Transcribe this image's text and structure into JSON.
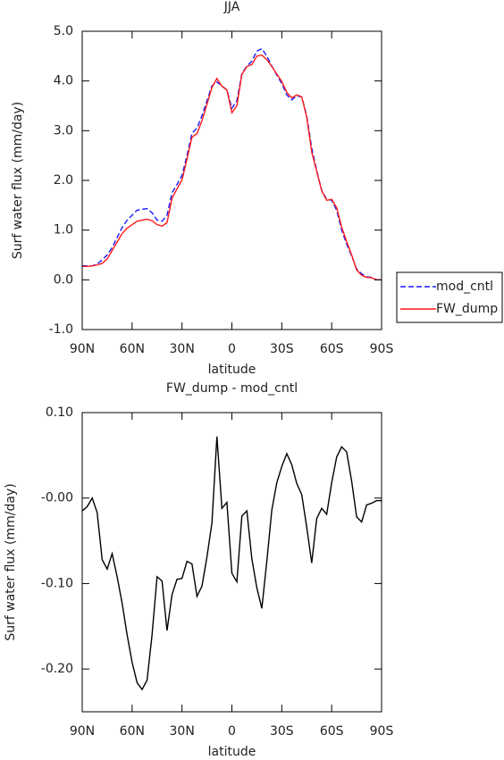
{
  "chart_data": [
    {
      "type": "line",
      "title": "JJA",
      "xlabel": "latitude",
      "ylabel": "Surf water flux (mm/day)",
      "x": [
        90,
        87,
        84,
        81,
        78,
        75,
        72,
        69,
        66,
        63,
        60,
        57,
        54,
        51,
        48,
        45,
        42,
        39,
        36,
        33,
        30,
        27,
        24,
        21,
        18,
        15,
        12,
        9,
        6,
        3,
        0,
        -3,
        -6,
        -9,
        -12,
        -15,
        -18,
        -21,
        -24,
        -27,
        -30,
        -33,
        -36,
        -39,
        -42,
        -45,
        -48,
        -51,
        -54,
        -57,
        -60,
        -63,
        -66,
        -69,
        -72,
        -75,
        -78,
        -81,
        -84,
        -87,
        -90
      ],
      "series": [
        {
          "name": "mod_cntl",
          "color": "#1a1aff",
          "linestyle": "dashed",
          "values": [
            0.28,
            0.28,
            0.28,
            0.32,
            0.4,
            0.5,
            0.65,
            0.85,
            1.05,
            1.2,
            1.3,
            1.4,
            1.42,
            1.43,
            1.35,
            1.2,
            1.18,
            1.3,
            1.75,
            1.92,
            2.1,
            2.5,
            2.95,
            3.05,
            3.3,
            3.6,
            3.9,
            3.98,
            3.9,
            3.82,
            3.45,
            3.6,
            4.15,
            4.3,
            4.4,
            4.6,
            4.65,
            4.5,
            4.3,
            4.12,
            3.95,
            3.72,
            3.62,
            3.7,
            3.68,
            3.3,
            2.65,
            2.2,
            1.8,
            1.62,
            1.6,
            1.4,
            1.0,
            0.72,
            0.48,
            0.22,
            0.12,
            0.06,
            0.05,
            0.0,
            0.0
          ]
        },
        {
          "name": "FW_dump",
          "color": "#ff1a1a",
          "linestyle": "solid",
          "values": [
            0.27,
            0.27,
            0.28,
            0.3,
            0.33,
            0.42,
            0.59,
            0.76,
            0.93,
            1.04,
            1.11,
            1.18,
            1.2,
            1.22,
            1.19,
            1.11,
            1.08,
            1.15,
            1.64,
            1.83,
            2.01,
            2.43,
            2.87,
            2.94,
            3.2,
            3.53,
            3.87,
            4.05,
            3.89,
            3.82,
            3.36,
            3.5,
            4.13,
            4.29,
            4.33,
            4.5,
            4.52,
            4.43,
            4.29,
            4.14,
            3.99,
            3.77,
            3.66,
            3.72,
            3.68,
            3.27,
            2.57,
            2.18,
            1.79,
            1.6,
            1.62,
            1.45,
            1.06,
            0.77,
            0.5,
            0.2,
            0.09,
            0.05,
            0.04,
            0.0,
            0.0
          ]
        }
      ],
      "xlim": [
        90,
        -90
      ],
      "xticks": [
        {
          "value": 90,
          "label": "90N"
        },
        {
          "value": 60,
          "label": "60N"
        },
        {
          "value": 30,
          "label": "30N"
        },
        0,
        {
          "value": -30,
          "label": "30S"
        },
        {
          "value": -60,
          "label": "60S"
        },
        {
          "value": -90,
          "label": "90S"
        }
      ],
      "ylim": [
        -1,
        5
      ],
      "yticks": [
        {
          "value": -1,
          "label": "-1.0"
        },
        {
          "value": 0,
          "label": "0.0"
        },
        {
          "value": 1,
          "label": "1.0"
        },
        {
          "value": 2,
          "label": "2.0"
        },
        {
          "value": 3,
          "label": "3.0"
        },
        {
          "value": 4,
          "label": "4.0"
        },
        {
          "value": 5,
          "label": "5.0"
        }
      ],
      "legend": "right"
    },
    {
      "type": "line",
      "title": "FW_dump - mod_cntl",
      "xlabel": "latitude",
      "ylabel": "Surf water flux (mm/day)",
      "x": [
        90,
        87,
        84,
        81,
        78,
        75,
        72,
        69,
        66,
        63,
        60,
        57,
        54,
        51,
        48,
        45,
        42,
        39,
        36,
        33,
        30,
        27,
        24,
        21,
        18,
        15,
        12,
        9,
        6,
        3,
        0,
        -3,
        -6,
        -9,
        -12,
        -15,
        -18,
        -21,
        -24,
        -27,
        -30,
        -33,
        -36,
        -39,
        -42,
        -45,
        -48,
        -51,
        -54,
        -57,
        -60,
        -63,
        -66,
        -69,
        -72,
        -75,
        -78,
        -81,
        -84,
        -87,
        -90
      ],
      "series": [
        {
          "color": "#000000",
          "linestyle": "solid",
          "values": [
            -0.015,
            -0.01,
            0.0,
            -0.017,
            -0.072,
            -0.083,
            -0.065,
            -0.092,
            -0.123,
            -0.16,
            -0.192,
            -0.216,
            -0.224,
            -0.213,
            -0.16,
            -0.092,
            -0.097,
            -0.155,
            -0.113,
            -0.095,
            -0.094,
            -0.074,
            -0.077,
            -0.115,
            -0.103,
            -0.069,
            -0.029,
            0.072,
            -0.012,
            -0.005,
            -0.088,
            -0.098,
            -0.021,
            -0.015,
            -0.071,
            -0.105,
            -0.129,
            -0.074,
            -0.014,
            0.018,
            0.037,
            0.052,
            0.039,
            0.017,
            0.004,
            -0.034,
            -0.076,
            -0.024,
            -0.012,
            -0.019,
            0.018,
            0.048,
            0.06,
            0.054,
            0.02,
            -0.022,
            -0.028,
            -0.008,
            -0.006,
            -0.003,
            -0.003
          ]
        }
      ],
      "xlim": [
        90,
        -90
      ],
      "xticks": [
        {
          "value": 90,
          "label": "90N"
        },
        {
          "value": 60,
          "label": "60N"
        },
        {
          "value": 30,
          "label": "30N"
        },
        0,
        {
          "value": -30,
          "label": "30S"
        },
        {
          "value": -60,
          "label": "60S"
        },
        {
          "value": -90,
          "label": "90S"
        }
      ],
      "ylim": [
        -0.25,
        0.1
      ],
      "yticks": [
        {
          "value": -0.2,
          "label": "-0.20"
        },
        {
          "value": -0.1,
          "label": "-0.10"
        },
        {
          "value": 0,
          "label": "-0.00"
        },
        {
          "value": 0.1,
          "label": "0.10"
        }
      ]
    }
  ]
}
